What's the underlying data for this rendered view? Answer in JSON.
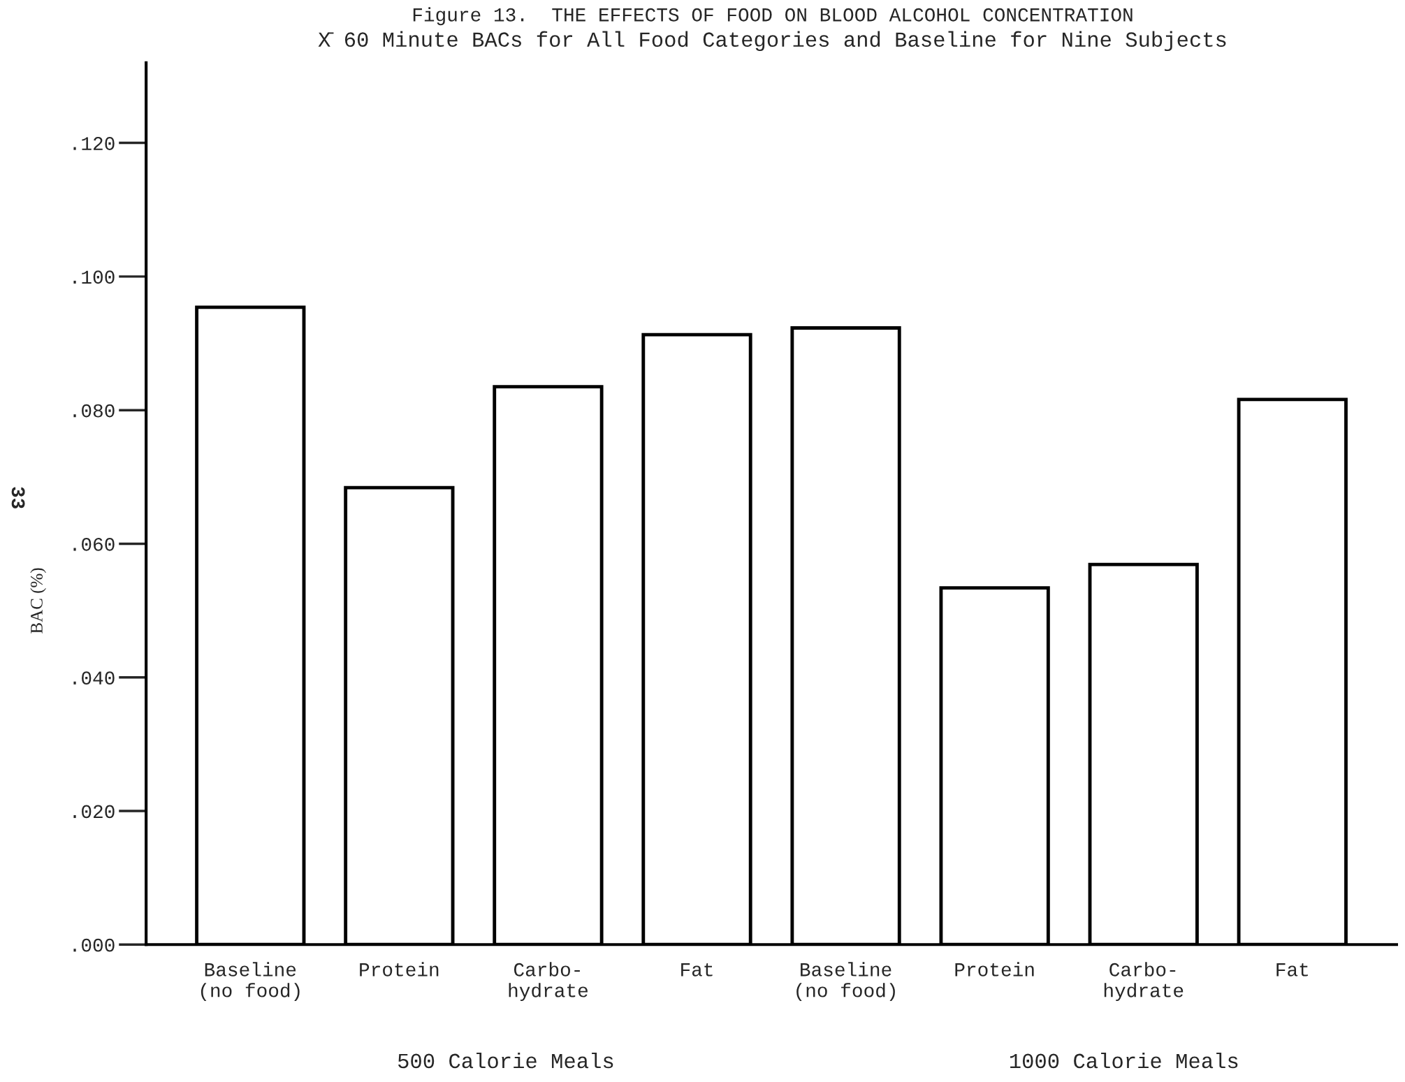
{
  "chart_data": {
    "type": "bar",
    "title": "Figure 13.  THE EFFECTS OF FOOD ON BLOOD ALCOHOL CONCENTRATION",
    "subtitle": "X̄ 60 Minute BACs for All Food Categories and Baseline for Nine Subjects",
    "ylabel": "BAC (%)",
    "categories": [
      "Baseline\n(no food)",
      "Protein",
      "Carbo-\nhydrate",
      "Fat",
      "Baseline\n(no food)",
      "Protein",
      "Carbo-\nhydrate",
      "Fat"
    ],
    "values": [
      0.0954,
      0.0684,
      0.0835,
      0.0913,
      0.0923,
      0.0534,
      0.0569,
      0.0816
    ],
    "color": "#000000",
    "ylim": [
      0,
      0.132
    ],
    "yticks": [
      {
        "value": 0,
        "label": ".000"
      },
      {
        "value": 0.02,
        "label": ".020"
      },
      {
        "value": 0.04,
        "label": ".040"
      },
      {
        "value": 0.06,
        "label": ".060"
      },
      {
        "value": 0.08,
        "label": ".080"
      },
      {
        "value": 0.1,
        "label": ".100"
      },
      {
        "value": 0.12,
        "label": ".120"
      }
    ],
    "grid": false,
    "legend": false,
    "annotations": [
      "500 Calorie Meals",
      "1000 Calorie Meals",
      "33"
    ]
  }
}
